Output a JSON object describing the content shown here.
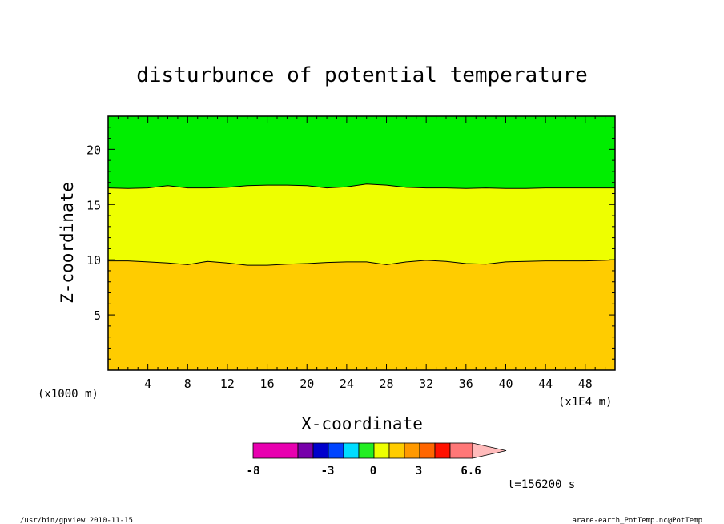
{
  "chart_data": {
    "type": "contour",
    "title": "disturbunce of potential temperature",
    "xlabel": "X-coordinate",
    "ylabel": "Z-coordinate",
    "x_unit": "(x1E4 m)",
    "y_unit": "(x1000 m)",
    "xlim": [
      0,
      51
    ],
    "ylim": [
      0,
      23
    ],
    "x_ticks": [
      4,
      8,
      12,
      16,
      20,
      24,
      28,
      32,
      36,
      40,
      44,
      48
    ],
    "x_tick_labels": [
      "4",
      "8",
      "12",
      "16",
      "20",
      "24",
      "28",
      "32",
      "36",
      "40",
      "44",
      "48"
    ],
    "y_ticks": [
      5,
      10,
      15,
      20
    ],
    "y_tick_labels": [
      "5",
      "10",
      "15",
      "20"
    ],
    "bands": [
      {
        "range": [
          1,
          2
        ],
        "color": "#ffcc00",
        "z_bottom": 0,
        "z_top": "boundary_lower"
      },
      {
        "range": [
          0,
          1
        ],
        "color": "#eeff00",
        "z_bottom": "boundary_lower",
        "z_top": "boundary_upper"
      },
      {
        "range": [
          -1,
          0
        ],
        "color": "#00ee00",
        "z_bottom": "boundary_upper",
        "z_top": 23
      }
    ],
    "boundary_lower": {
      "x": [
        0,
        2,
        4,
        6,
        8,
        10,
        12,
        14,
        16,
        18,
        20,
        22,
        24,
        26,
        28,
        30,
        32,
        34,
        36,
        38,
        40,
        42,
        44,
        46,
        48,
        50,
        51
      ],
      "z": [
        9.9,
        9.9,
        9.8,
        9.7,
        9.55,
        9.85,
        9.7,
        9.5,
        9.5,
        9.6,
        9.65,
        9.75,
        9.8,
        9.8,
        9.55,
        9.8,
        9.95,
        9.85,
        9.65,
        9.6,
        9.8,
        9.85,
        9.9,
        9.9,
        9.9,
        9.95,
        10.0
      ],
      "level": 1
    },
    "boundary_upper": {
      "x": [
        0,
        2,
        4,
        6,
        8,
        10,
        12,
        14,
        16,
        18,
        20,
        22,
        24,
        26,
        28,
        30,
        32,
        34,
        36,
        38,
        40,
        42,
        44,
        46,
        48,
        50,
        51
      ],
      "z": [
        16.5,
        16.45,
        16.5,
        16.7,
        16.5,
        16.5,
        16.55,
        16.7,
        16.75,
        16.75,
        16.7,
        16.5,
        16.6,
        16.85,
        16.75,
        16.55,
        16.5,
        16.5,
        16.45,
        16.5,
        16.45,
        16.45,
        16.5,
        16.5,
        16.5,
        16.5,
        16.5
      ],
      "level": 0
    },
    "colorbar": {
      "colors": [
        "#e800b0",
        "#7700aa",
        "#0000cc",
        "#0044ff",
        "#00ddff",
        "#22ee22",
        "#eeff00",
        "#ffcc00",
        "#ff9900",
        "#ff6600",
        "#ff1100",
        "#ff7777",
        "#ffbbbb"
      ],
      "tick_labels": [
        "-8",
        "-3",
        "0",
        "3",
        "6.6"
      ],
      "tick_positions": [
        -8,
        -3,
        0,
        3,
        6.6
      ]
    },
    "time_label": "t=156200 s"
  },
  "footer": {
    "left": "/usr/bin/gpview   2010-11-15",
    "right": "arare-earth_PotTemp.nc@PotTemp"
  }
}
